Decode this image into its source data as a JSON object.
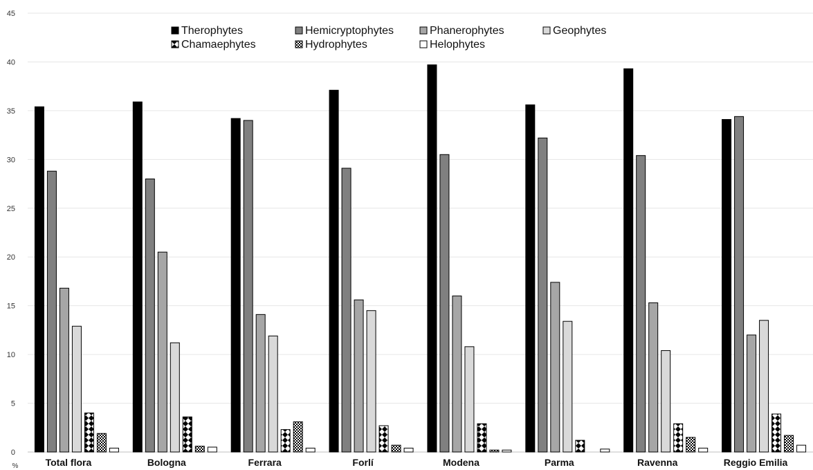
{
  "chart_data": {
    "type": "bar",
    "ylabel": "%",
    "ylim": [
      0,
      45
    ],
    "yticks": [
      0,
      5,
      10,
      15,
      20,
      25,
      30,
      35,
      40,
      45
    ],
    "grid": true,
    "legend_position": "top-center",
    "categories": [
      "Total flora",
      "Bologna",
      "Ferrara",
      "Forlí",
      "Modena",
      "Parma",
      "Ravenna",
      "Reggio Emilia"
    ],
    "series": [
      {
        "name": "Therophytes",
        "pattern": "solid-black",
        "values": [
          35.4,
          35.9,
          34.2,
          37.1,
          39.7,
          35.6,
          39.3,
          34.1
        ]
      },
      {
        "name": "Hemicryptophytes",
        "pattern": "dark-gray",
        "values": [
          28.8,
          28.0,
          34.0,
          29.1,
          30.5,
          32.2,
          30.4,
          34.4
        ]
      },
      {
        "name": "Phanerophytes",
        "pattern": "medium-gray",
        "values": [
          16.8,
          20.5,
          14.1,
          15.6,
          16.0,
          17.4,
          15.3,
          12.0
        ]
      },
      {
        "name": "Geophytes",
        "pattern": "light-gray",
        "values": [
          12.9,
          11.2,
          11.9,
          14.5,
          10.8,
          13.4,
          10.4,
          13.5
        ]
      },
      {
        "name": "Chamaephytes",
        "pattern": "diamonds",
        "values": [
          4.0,
          3.6,
          2.3,
          2.7,
          2.9,
          1.2,
          2.9,
          3.9
        ]
      },
      {
        "name": "Hydrophytes",
        "pattern": "checker",
        "values": [
          1.9,
          0.6,
          3.1,
          0.7,
          0.2,
          0.0,
          1.5,
          1.7
        ]
      },
      {
        "name": "Helophytes",
        "pattern": "white",
        "values": [
          0.4,
          0.5,
          0.4,
          0.4,
          0.2,
          0.3,
          0.4,
          0.7
        ]
      }
    ]
  },
  "colors": {
    "solid-black": "#000000",
    "dark-gray": "#808080",
    "medium-gray": "#a6a6a6",
    "light-gray": "#d9d9d9",
    "white": "#ffffff",
    "grid": "#e6e6e6"
  }
}
